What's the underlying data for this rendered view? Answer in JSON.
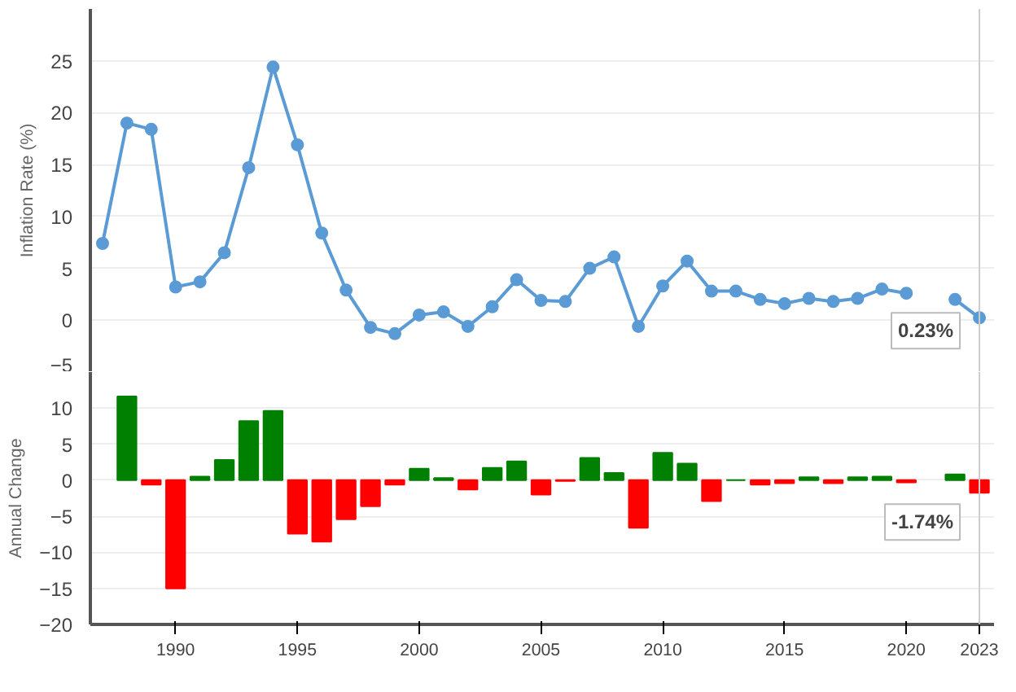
{
  "chart_data": [
    {
      "type": "line",
      "ylabel": "Inflation Rate (%)",
      "x": [
        1987,
        1988,
        1989,
        1990,
        1991,
        1992,
        1993,
        1994,
        1995,
        1996,
        1997,
        1998,
        1999,
        2000,
        2001,
        2002,
        2003,
        2004,
        2005,
        2006,
        2007,
        2008,
        2009,
        2010,
        2011,
        2012,
        2013,
        2014,
        2015,
        2016,
        2017,
        2018,
        2019,
        2020,
        2021,
        2022,
        2023
      ],
      "series": [
        {
          "color": "#5b9bd5",
          "values": [
            7.4,
            19.0,
            18.4,
            3.2,
            3.7,
            6.5,
            14.7,
            24.4,
            16.9,
            8.4,
            2.9,
            -0.7,
            -1.3,
            0.5,
            0.8,
            -0.6,
            1.3,
            3.9,
            1.9,
            1.8,
            5.0,
            6.1,
            -0.6,
            3.3,
            5.7,
            2.8,
            2.8,
            2.0,
            1.6,
            2.1,
            1.8,
            2.1,
            3.0,
            2.6,
            null,
            2.0,
            0.23
          ]
        }
      ],
      "xlim": [
        1986.5,
        2023.6
      ],
      "ylim": [
        -5,
        30
      ],
      "yticks": [
        -5,
        0,
        5,
        10,
        15,
        20,
        25
      ],
      "tick_labels": "y",
      "grid": "y",
      "marker": "circle",
      "annotations": [
        {
          "text": "0.23%",
          "x": 2023,
          "y": 0.23
        }
      ],
      "ref_lines": [
        {
          "axis": "x",
          "value": 2023,
          "color": "#cccccc"
        }
      ]
    },
    {
      "type": "bar",
      "ylabel": "Annual Change",
      "x": [
        1988,
        1989,
        1990,
        1991,
        1992,
        1993,
        1994,
        1995,
        1996,
        1997,
        1998,
        1999,
        2000,
        2001,
        2002,
        2003,
        2004,
        2005,
        2006,
        2007,
        2008,
        2009,
        2010,
        2011,
        2012,
        2013,
        2014,
        2015,
        2016,
        2017,
        2018,
        2019,
        2020,
        2021,
        2022,
        2023
      ],
      "values": [
        11.6,
        -0.6,
        -15.0,
        0.5,
        2.8,
        8.2,
        9.6,
        -7.4,
        -8.5,
        -5.4,
        -3.6,
        -0.6,
        1.6,
        0.3,
        -1.3,
        1.7,
        2.6,
        -2.0,
        -0.1,
        3.1,
        1.0,
        -6.6,
        3.8,
        2.3,
        -2.9,
        0,
        -0.6,
        -0.4,
        0.4,
        -0.4,
        0.4,
        0.5,
        -0.3,
        null,
        0.8,
        -1.74
      ],
      "colors": [
        "#008000",
        "#ff0000",
        "#ff0000",
        "#008000",
        "#008000",
        "#008000",
        "#008000",
        "#ff0000",
        "#ff0000",
        "#ff0000",
        "#ff0000",
        "#ff0000",
        "#008000",
        "#008000",
        "#ff0000",
        "#008000",
        "#008000",
        "#ff0000",
        "#ff0000",
        "#008000",
        "#008000",
        "#ff0000",
        "#008000",
        "#008000",
        "#ff0000",
        "#008000",
        "#ff0000",
        "#ff0000",
        "#008000",
        "#ff0000",
        "#008000",
        "#008000",
        "#ff0000",
        "#008000",
        "#008000",
        "#ff0000"
      ],
      "xlim": [
        1986.5,
        2023.6
      ],
      "ylim": [
        -20,
        15
      ],
      "yticks": [
        -20,
        -15,
        -10,
        -5,
        0,
        5,
        10
      ],
      "xticks": [
        1990,
        1995,
        2000,
        2005,
        2010,
        2015,
        2020,
        {
          "value": 2023,
          "label": "2023"
        }
      ],
      "grid": "y",
      "annotations": [
        {
          "text": "-1.74%",
          "x": 2023,
          "y": -1.74
        }
      ],
      "ref_lines": [
        {
          "axis": "x",
          "value": 2023,
          "color": "#cccccc"
        }
      ]
    }
  ]
}
